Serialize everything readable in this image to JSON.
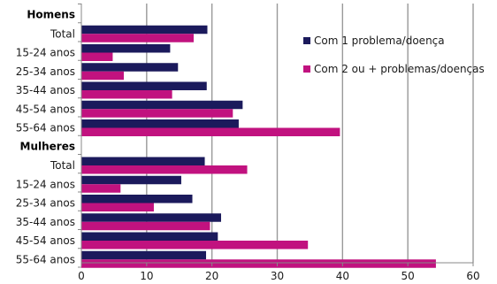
{
  "chart_data": {
    "type": "bar",
    "orientation": "horizontal",
    "xlim": [
      0,
      60
    ],
    "xticks": [
      0,
      10,
      20,
      30,
      40,
      50,
      60
    ],
    "grid": true,
    "legend_position": "right",
    "colors": {
      "series1": "#1b1a5c",
      "series2": "#c1127f"
    },
    "series": [
      {
        "name": "Com 1 problema/doença"
      },
      {
        "name": "Com 2 ou + problemas/doenças"
      }
    ],
    "groups": [
      {
        "label": "Homens",
        "categories": [
          "Total",
          "15-24 anos",
          "25-34 anos",
          "35-44 anos",
          "45-54 anos",
          "55-64 anos"
        ],
        "series1": [
          19.3,
          13.6,
          14.8,
          19.2,
          24.7,
          24.1
        ],
        "series2": [
          17.2,
          4.8,
          6.5,
          13.9,
          23.2,
          39.6
        ]
      },
      {
        "label": "Mulheres",
        "categories": [
          "Total",
          "15-24 anos",
          "25-34 anos",
          "35-44 anos",
          "45-54 anos",
          "55-64 anos"
        ],
        "series1": [
          18.9,
          15.3,
          17.0,
          21.4,
          20.9,
          19.1
        ],
        "series2": [
          25.4,
          6.0,
          11.1,
          19.7,
          34.7,
          54.3
        ]
      }
    ]
  }
}
